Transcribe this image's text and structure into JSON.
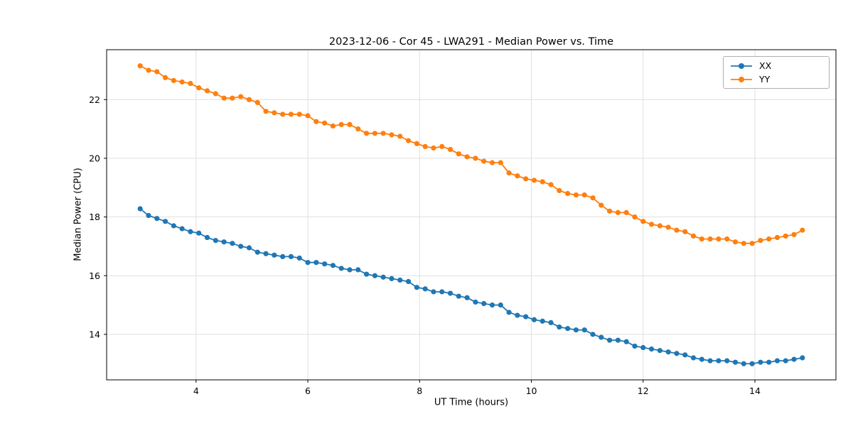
{
  "figure": {
    "title": "2023-12-06 - Cor 45 - LWA291 - Median Power vs. Time"
  },
  "chart_data": {
    "type": "line",
    "title": "2023-12-06 - Cor 45 - LWA291 - Median Power vs. Time",
    "xlabel": "UT Time (hours)",
    "ylabel": "Median Power (CPU)",
    "xlim": [
      2.4,
      15.45
    ],
    "ylim": [
      12.45,
      23.7
    ],
    "x_ticks": [
      4,
      6,
      8,
      10,
      12,
      14
    ],
    "y_ticks": [
      14,
      16,
      18,
      20,
      22
    ],
    "grid": true,
    "legend_position": "upper right",
    "marker": "circle",
    "x": [
      3.0,
      3.15,
      3.3,
      3.45,
      3.6,
      3.75,
      3.9,
      4.05,
      4.2,
      4.35,
      4.5,
      4.65,
      4.8,
      4.95,
      5.1,
      5.25,
      5.4,
      5.55,
      5.7,
      5.85,
      6.0,
      6.15,
      6.3,
      6.45,
      6.6,
      6.75,
      6.9,
      7.05,
      7.2,
      7.35,
      7.5,
      7.65,
      7.8,
      7.95,
      8.1,
      8.25,
      8.4,
      8.55,
      8.7,
      8.85,
      9.0,
      9.15,
      9.3,
      9.45,
      9.6,
      9.75,
      9.9,
      10.05,
      10.2,
      10.35,
      10.5,
      10.65,
      10.8,
      10.95,
      11.1,
      11.25,
      11.4,
      11.55,
      11.7,
      11.85,
      12.0,
      12.15,
      12.3,
      12.45,
      12.6,
      12.75,
      12.9,
      13.05,
      13.2,
      13.35,
      13.5,
      13.65,
      13.8,
      13.95,
      14.1,
      14.25,
      14.4,
      14.55,
      14.7,
      14.85
    ],
    "series": [
      {
        "name": "XX",
        "color": "#1f77b4",
        "values": [
          18.28,
          18.05,
          17.95,
          17.85,
          17.7,
          17.6,
          17.5,
          17.45,
          17.3,
          17.2,
          17.15,
          17.1,
          17.0,
          16.95,
          16.8,
          16.75,
          16.7,
          16.65,
          16.65,
          16.6,
          16.45,
          16.45,
          16.4,
          16.35,
          16.25,
          16.2,
          16.2,
          16.05,
          16.0,
          15.95,
          15.9,
          15.85,
          15.8,
          15.6,
          15.55,
          15.45,
          15.45,
          15.4,
          15.3,
          15.25,
          15.1,
          15.05,
          15.0,
          15.0,
          14.75,
          14.65,
          14.6,
          14.5,
          14.45,
          14.4,
          14.25,
          14.2,
          14.15,
          14.15,
          14.0,
          13.9,
          13.8,
          13.8,
          13.75,
          13.6,
          13.55,
          13.5,
          13.45,
          13.4,
          13.35,
          13.3,
          13.2,
          13.15,
          13.1,
          13.1,
          13.1,
          13.05,
          13.0,
          13.0,
          13.05,
          13.05,
          13.1,
          13.1,
          13.15,
          13.2
        ]
      },
      {
        "name": "YY",
        "color": "#ff7f0e",
        "values": [
          23.15,
          23.0,
          22.95,
          22.75,
          22.65,
          22.6,
          22.55,
          22.4,
          22.3,
          22.2,
          22.05,
          22.05,
          22.1,
          22.0,
          21.9,
          21.6,
          21.55,
          21.5,
          21.5,
          21.5,
          21.45,
          21.25,
          21.2,
          21.1,
          21.15,
          21.15,
          21.0,
          20.85,
          20.85,
          20.85,
          20.8,
          20.75,
          20.6,
          20.5,
          20.4,
          20.35,
          20.4,
          20.3,
          20.15,
          20.05,
          20.0,
          19.9,
          19.85,
          19.85,
          19.5,
          19.4,
          19.3,
          19.25,
          19.2,
          19.1,
          18.9,
          18.8,
          18.75,
          18.75,
          18.65,
          18.4,
          18.2,
          18.15,
          18.15,
          18.0,
          17.85,
          17.75,
          17.7,
          17.65,
          17.55,
          17.5,
          17.35,
          17.25,
          17.25,
          17.25,
          17.25,
          17.15,
          17.1,
          17.1,
          17.2,
          17.25,
          17.3,
          17.35,
          17.4,
          17.55
        ]
      }
    ]
  }
}
